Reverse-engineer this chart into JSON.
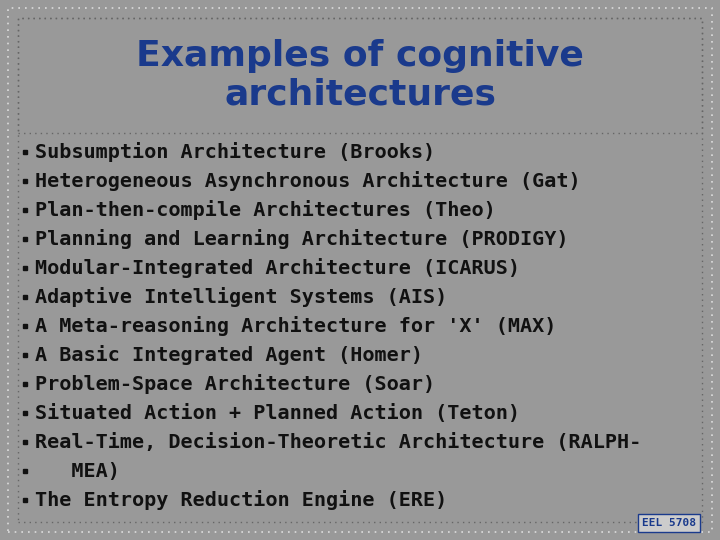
{
  "title_line1": "Examples of cognitive",
  "title_line2": "architectures",
  "title_color": "#1a3a8c",
  "background_color": "#999999",
  "title_bg_color": "#999999",
  "bullet_items": [
    "Subsumption Architecture (Brooks)",
    "Heterogeneous Asynchronous Architecture (Gat)",
    "Plan-then-compile Architectures (Theo)",
    "Planning and Learning Architecture (PRODIGY)",
    "Modular-Integrated Architecture (ICARUS)",
    "Adaptive Intelligent Systems (AIS)",
    "A Meta-reasoning Architecture for 'X' (MAX)",
    "A Basic Integrated Agent (Homer)",
    "Problem-Space Architecture (Soar)",
    "Situated Action + Planned Action (Teton)",
    "Real-Time, Decision-Theoretic Architecture (RALPH-",
    "   MEA)",
    "The Entropy Reduction Engine (ERE)"
  ],
  "bullet_color": "#111111",
  "bullet_fontsize": 14.5,
  "title_fontsize": 26,
  "watermark": "EEL 5708",
  "watermark_color": "#1a3a8c",
  "watermark_bg": "#cccccc",
  "watermark_fontsize": 8,
  "border_color_outer": "#dddddd",
  "border_color_inner": "#666666",
  "figsize": [
    7.2,
    5.4
  ],
  "dpi": 100
}
